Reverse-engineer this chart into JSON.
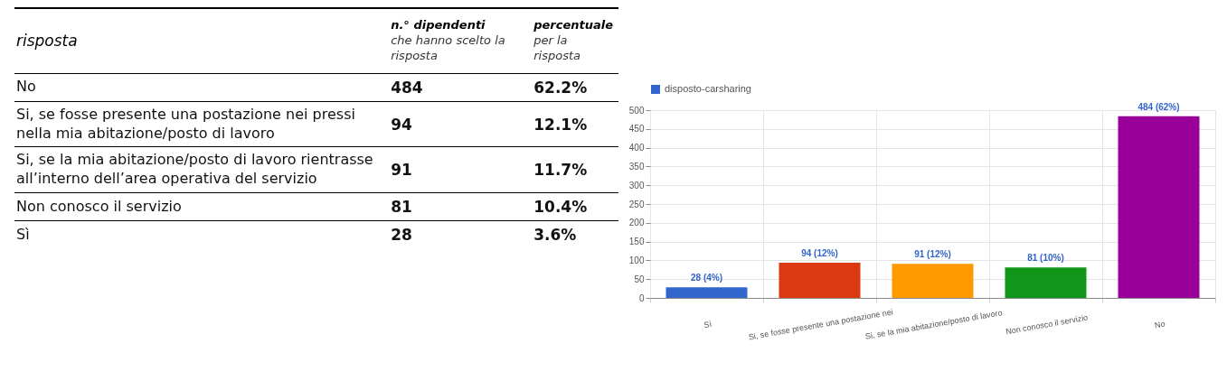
{
  "chart_data": [
    {
      "type": "other",
      "annotations": [
        "risposta",
        "n.° dipendenti\nche hanno scelto la risposta",
        "percentuale\nper la risposta",
        "No",
        "484",
        "62.2%",
        "Si, se fosse presente una postazione nei pressi nella mia abitazione/posto di lavoro",
        "94",
        "12.1%",
        "Si, se la mia abitazione/posto di lavoro rientrasse all’interno dell’area operativa del servizio",
        "91",
        "11.7%",
        "Non conosco il servizio",
        "81",
        "10.4%",
        "Sì",
        "28",
        "3.6%"
      ]
    },
    {
      "type": "bar",
      "categories": [
        "Sì",
        "Si, se fosse presente una postazione nei",
        "Si, se la mia abitazione/posto di lavoro",
        "Non conosco il servizio",
        "No"
      ],
      "series": [
        {
          "name": "disposto-carsharing",
          "values": [
            28,
            94,
            91,
            81,
            484
          ]
        }
      ],
      "colors": [
        "#3366cc",
        "#dc3912",
        "#ff9900",
        "#109618",
        "#990099"
      ],
      "value_labels": [
        "28 (4%)",
        "94 (12%)",
        "91 (12%)",
        "81 (10%)",
        "484 (62%)"
      ],
      "ylim": [
        0,
        500
      ],
      "yticks": [
        0,
        50,
        100,
        150,
        200,
        250,
        300,
        350,
        400,
        450,
        500
      ],
      "grid": true,
      "legend": "top"
    }
  ]
}
